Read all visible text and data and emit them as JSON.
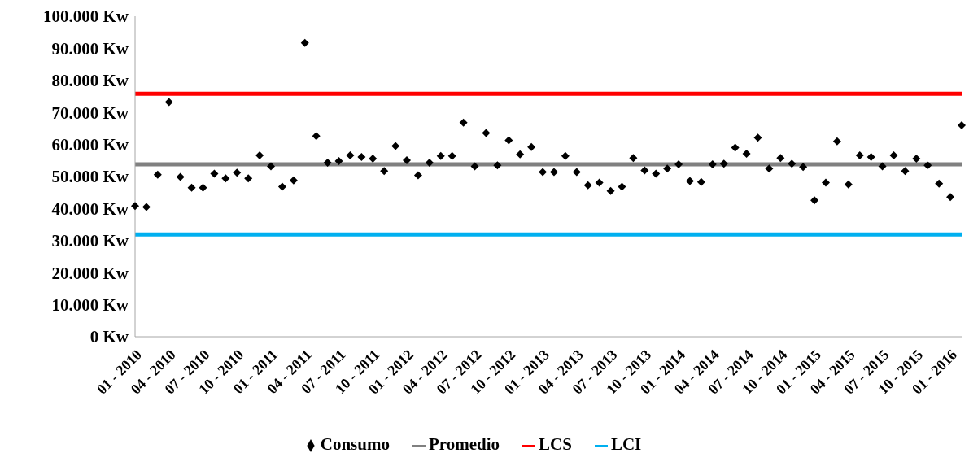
{
  "chart_data": {
    "type": "scatter",
    "categories": [
      "01 - 2010",
      null,
      null,
      "04 - 2010",
      null,
      null,
      "07 - 2010",
      null,
      null,
      "10 - 2010",
      null,
      null,
      "01 - 2011",
      null,
      null,
      "04 - 2011",
      null,
      null,
      "07 - 2011",
      null,
      null,
      "10 - 2011",
      null,
      null,
      "01 - 2012",
      null,
      null,
      "04 - 2012",
      null,
      null,
      "07 - 2012",
      null,
      null,
      "10 - 2012",
      null,
      null,
      "01 - 2013",
      null,
      null,
      "04 - 2013",
      null,
      null,
      "07 - 2013",
      null,
      null,
      "10 - 2013",
      null,
      null,
      "01 - 2014",
      null,
      null,
      "04 - 2014",
      null,
      null,
      "07 - 2014",
      null,
      null,
      "10 - 2014",
      null,
      null,
      "01 - 2015",
      null,
      null,
      "04 - 2015",
      null,
      null,
      "07 - 2015",
      null,
      null,
      "10 - 2015",
      null,
      null,
      "01 - 2016",
      null
    ],
    "series": [
      {
        "name": "Consumo",
        "marker": "diamond",
        "color": "#000000",
        "values": [
          40800,
          40500,
          50600,
          73200,
          49900,
          46500,
          46500,
          50900,
          49400,
          51200,
          49400,
          56600,
          53200,
          46800,
          48800,
          91700,
          62600,
          54300,
          54800,
          56600,
          56100,
          55600,
          51700,
          59500,
          55100,
          50400,
          54300,
          56400,
          56400,
          66800,
          53200,
          63600,
          53500,
          61300,
          56900,
          59200,
          51400,
          51400,
          56400,
          51400,
          47300,
          48100,
          45500,
          46800,
          55800,
          51900,
          50900,
          52500,
          53800,
          48600,
          48300,
          53800,
          54000,
          59000,
          57100,
          62100,
          52500,
          55800,
          54000,
          53000,
          42600,
          48100,
          61000,
          47500,
          56600,
          56100,
          53200,
          56600,
          51700,
          55600,
          53500,
          47800,
          43600,
          66000
        ]
      },
      {
        "name": "Promedio",
        "type": "line",
        "marker": "none",
        "line_style": "solid",
        "color": "#808080",
        "values": [
          53800,
          53800,
          53800,
          53800,
          53800,
          53800,
          53800,
          53800,
          53800,
          53800,
          53800,
          53800,
          53800,
          53800,
          53800,
          53800,
          53800,
          53800,
          53800,
          53800,
          53800,
          53800,
          53800,
          53800,
          53800,
          53800,
          53800,
          53800,
          53800,
          53800,
          53800,
          53800,
          53800,
          53800,
          53800,
          53800,
          53800,
          53800,
          53800,
          53800,
          53800,
          53800,
          53800,
          53800,
          53800,
          53800,
          53800,
          53800,
          53800,
          53800,
          53800,
          53800,
          53800,
          53800,
          53800,
          53800,
          53800,
          53800,
          53800,
          53800,
          53800,
          53800,
          53800,
          53800,
          53800,
          53800,
          53800,
          53800,
          53800,
          53800,
          53800,
          53800,
          53800,
          53800
        ]
      },
      {
        "name": "LCS",
        "type": "line",
        "marker": "none",
        "line_style": "solid",
        "color": "#ff0000",
        "values": [
          75800,
          75800,
          75800,
          75800,
          75800,
          75800,
          75800,
          75800,
          75800,
          75800,
          75800,
          75800,
          75800,
          75800,
          75800,
          75800,
          75800,
          75800,
          75800,
          75800,
          75800,
          75800,
          75800,
          75800,
          75800,
          75800,
          75800,
          75800,
          75800,
          75800,
          75800,
          75800,
          75800,
          75800,
          75800,
          75800,
          75800,
          75800,
          75800,
          75800,
          75800,
          75800,
          75800,
          75800,
          75800,
          75800,
          75800,
          75800,
          75800,
          75800,
          75800,
          75800,
          75800,
          75800,
          75800,
          75800,
          75800,
          75800,
          75800,
          75800,
          75800,
          75800,
          75800,
          75800,
          75800,
          75800,
          75800,
          75800,
          75800,
          75800,
          75800,
          75800,
          75800,
          75800
        ]
      },
      {
        "name": "LCI",
        "type": "line",
        "marker": "none",
        "line_style": "solid",
        "color": "#00b0f0",
        "values": [
          31900,
          31900,
          31900,
          31900,
          31900,
          31900,
          31900,
          31900,
          31900,
          31900,
          31900,
          31900,
          31900,
          31900,
          31900,
          31900,
          31900,
          31900,
          31900,
          31900,
          31900,
          31900,
          31900,
          31900,
          31900,
          31900,
          31900,
          31900,
          31900,
          31900,
          31900,
          31900,
          31900,
          31900,
          31900,
          31900,
          31900,
          31900,
          31900,
          31900,
          31900,
          31900,
          31900,
          31900,
          31900,
          31900,
          31900,
          31900,
          31900,
          31900,
          31900,
          31900,
          31900,
          31900,
          31900,
          31900,
          31900,
          31900,
          31900,
          31900,
          31900,
          31900,
          31900,
          31900,
          31900,
          31900,
          31900,
          31900,
          31900,
          31900,
          31900,
          31900,
          31900,
          31900
        ]
      }
    ],
    "ylim": [
      0,
      100000
    ],
    "yticks": [
      {
        "value": 0,
        "label": "0  Kw"
      },
      {
        "value": 10000,
        "label": "10.000  Kw"
      },
      {
        "value": 20000,
        "label": "20.000  Kw"
      },
      {
        "value": 30000,
        "label": "30.000  Kw"
      },
      {
        "value": 40000,
        "label": "40.000  Kw"
      },
      {
        "value": 50000,
        "label": "50.000  Kw"
      },
      {
        "value": 60000,
        "label": "60.000  Kw"
      },
      {
        "value": 70000,
        "label": "70.000  Kw"
      },
      {
        "value": 80000,
        "label": "80.000  Kw"
      },
      {
        "value": 90000,
        "label": "90.000  Kw"
      },
      {
        "value": 100000,
        "label": "100.000  Kw"
      }
    ],
    "legend": "bottom"
  }
}
